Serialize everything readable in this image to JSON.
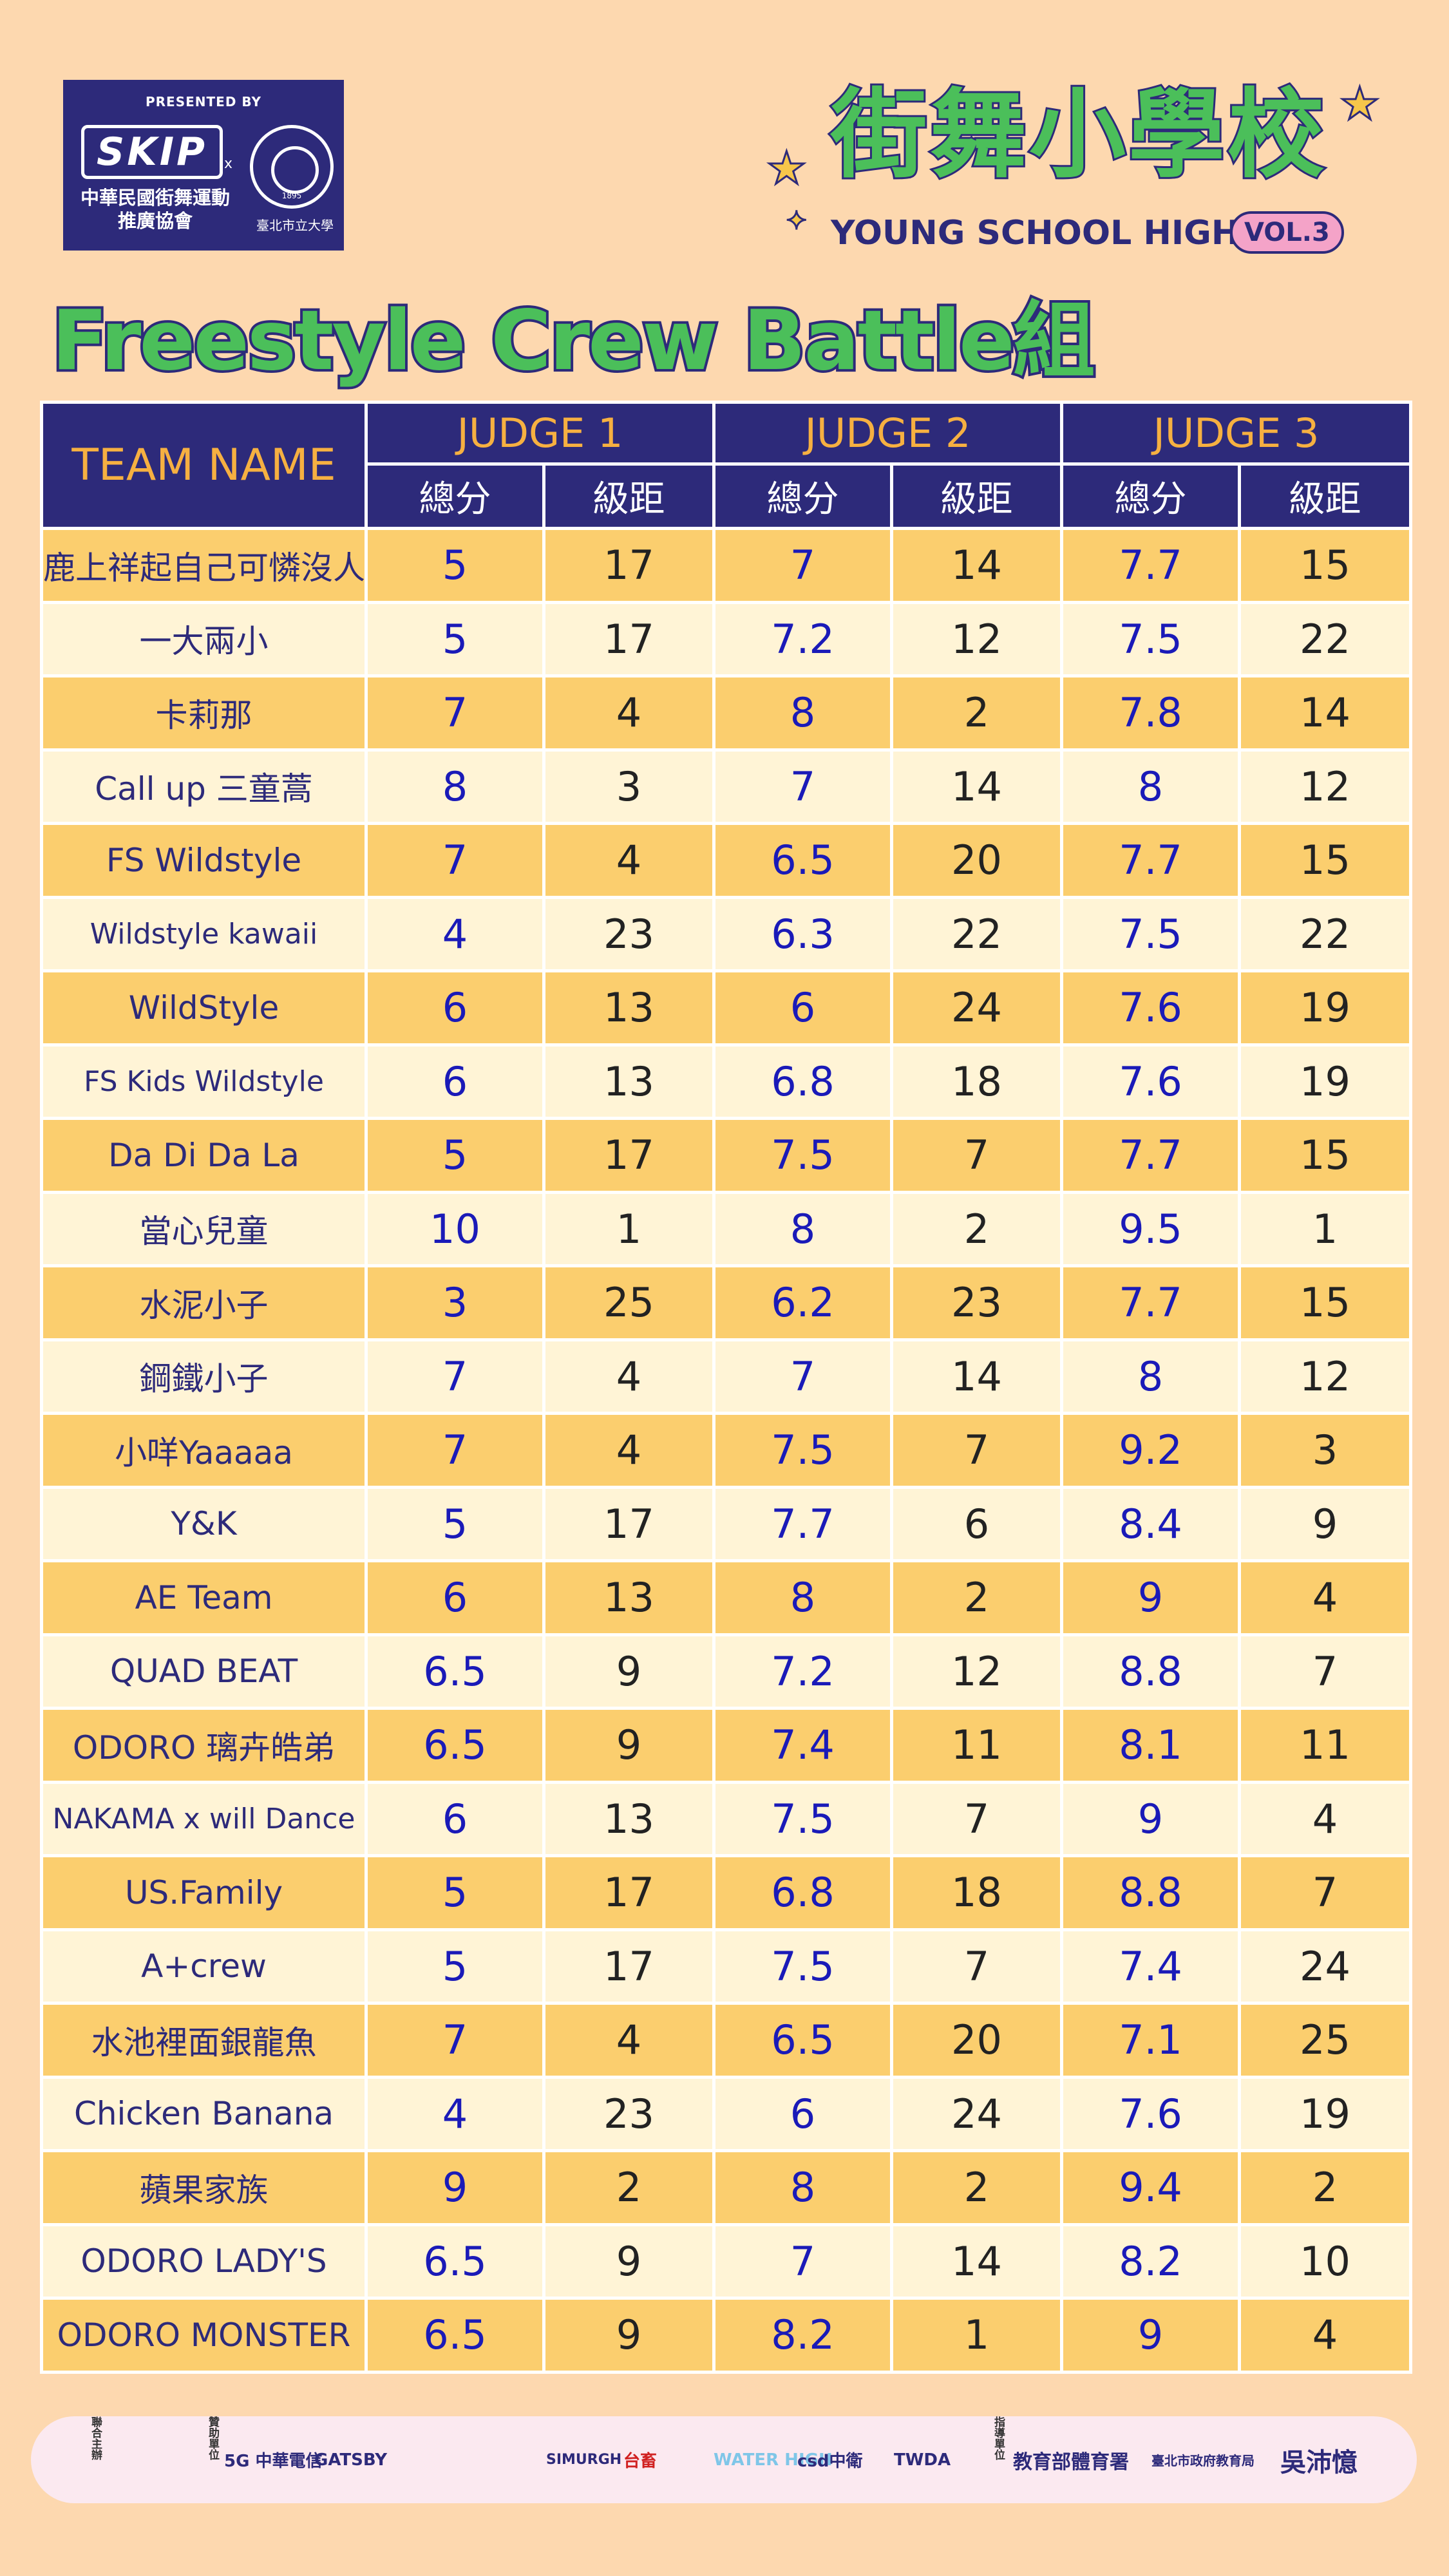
{
  "header": {
    "presented_by": "PRESENTED BY",
    "skip_logo": "SKIP",
    "x_mark": "x",
    "association_name": "中華民國街舞運動推廣協會",
    "university_name": "臺北市立大學",
    "university_year": "1895",
    "event_name_cn": "街舞小學校",
    "event_name_en": "YOUNG SCHOOL HIGH",
    "event_vol": "VOL.3"
  },
  "page_title": "Freestyle Crew Battle組",
  "table": {
    "team_header": "TEAM NAME",
    "judges": [
      "JUDGE 1",
      "JUDGE 2",
      "JUDGE 3"
    ],
    "score_label": "總分",
    "rank_label": "級距",
    "rows": [
      {
        "team": "鹿上祥起自己可憐沒人艾",
        "j1": "5",
        "r1": "17",
        "j2": "7",
        "r2": "14",
        "j3": "7.7",
        "r3": "15"
      },
      {
        "team": "一大兩小",
        "j1": "5",
        "r1": "17",
        "j2": "7.2",
        "r2": "12",
        "j3": "7.5",
        "r3": "22"
      },
      {
        "team": "卡莉那",
        "j1": "7",
        "r1": "4",
        "j2": "8",
        "r2": "2",
        "j3": "7.8",
        "r3": "14"
      },
      {
        "team": "Call up 三童蒿",
        "j1": "8",
        "r1": "3",
        "j2": "7",
        "r2": "14",
        "j3": "8",
        "r3": "12"
      },
      {
        "team": "FS Wildstyle",
        "j1": "7",
        "r1": "4",
        "j2": "6.5",
        "r2": "20",
        "j3": "7.7",
        "r3": "15"
      },
      {
        "team": "Wildstyle kawaii",
        "j1": "4",
        "r1": "23",
        "j2": "6.3",
        "r2": "22",
        "j3": "7.5",
        "r3": "22"
      },
      {
        "team": "WildStyle",
        "j1": "6",
        "r1": "13",
        "j2": "6",
        "r2": "24",
        "j3": "7.6",
        "r3": "19"
      },
      {
        "team": "FS Kids Wildstyle",
        "j1": "6",
        "r1": "13",
        "j2": "6.8",
        "r2": "18",
        "j3": "7.6",
        "r3": "19"
      },
      {
        "team": "Da Di Da La",
        "j1": "5",
        "r1": "17",
        "j2": "7.5",
        "r2": "7",
        "j3": "7.7",
        "r3": "15"
      },
      {
        "team": "當心兒童",
        "j1": "10",
        "r1": "1",
        "j2": "8",
        "r2": "2",
        "j3": "9.5",
        "r3": "1"
      },
      {
        "team": "水泥小子",
        "j1": "3",
        "r1": "25",
        "j2": "6.2",
        "r2": "23",
        "j3": "7.7",
        "r3": "15"
      },
      {
        "team": "鋼鐵小子",
        "j1": "7",
        "r1": "4",
        "j2": "7",
        "r2": "14",
        "j3": "8",
        "r3": "12"
      },
      {
        "team": "小咩Yaaaaa",
        "j1": "7",
        "r1": "4",
        "j2": "7.5",
        "r2": "7",
        "j3": "9.2",
        "r3": "3"
      },
      {
        "team": "Y&K",
        "j1": "5",
        "r1": "17",
        "j2": "7.7",
        "r2": "6",
        "j3": "8.4",
        "r3": "9"
      },
      {
        "team": "AE Team",
        "j1": "6",
        "r1": "13",
        "j2": "8",
        "r2": "2",
        "j3": "9",
        "r3": "4"
      },
      {
        "team": "QUAD BEAT",
        "j1": "6.5",
        "r1": "9",
        "j2": "7.2",
        "r2": "12",
        "j3": "8.8",
        "r3": "7"
      },
      {
        "team": "ODORO 璃卉皓弟",
        "j1": "6.5",
        "r1": "9",
        "j2": "7.4",
        "r2": "11",
        "j3": "8.1",
        "r3": "11"
      },
      {
        "team": "NAKAMA x will Dance",
        "j1": "6",
        "r1": "13",
        "j2": "7.5",
        "r2": "7",
        "j3": "9",
        "r3": "4"
      },
      {
        "team": "US.Family",
        "j1": "5",
        "r1": "17",
        "j2": "6.8",
        "r2": "18",
        "j3": "8.8",
        "r3": "7"
      },
      {
        "team": "A+crew",
        "j1": "5",
        "r1": "17",
        "j2": "7.5",
        "r2": "7",
        "j3": "7.4",
        "r3": "24"
      },
      {
        "team": "水池裡面銀龍魚",
        "j1": "7",
        "r1": "4",
        "j2": "6.5",
        "r2": "20",
        "j3": "7.1",
        "r3": "25"
      },
      {
        "team": "Chicken Banana",
        "j1": "4",
        "r1": "23",
        "j2": "6",
        "r2": "24",
        "j3": "7.6",
        "r3": "19"
      },
      {
        "team": "蘋果家族",
        "j1": "9",
        "r1": "2",
        "j2": "8",
        "r2": "2",
        "j3": "9.4",
        "r3": "2"
      },
      {
        "team": "ODORO LADY'S",
        "j1": "6.5",
        "r1": "9",
        "j2": "7",
        "r2": "14",
        "j3": "8.2",
        "r3": "10"
      },
      {
        "team": "ODORO MONSTER",
        "j1": "6.5",
        "r1": "9",
        "j2": "8.2",
        "r2": "1",
        "j3": "9",
        "r3": "4"
      }
    ]
  },
  "sponsors": {
    "co_host_label": "聯合主辦",
    "sponsor_label": "贊助單位",
    "guide_label": "指導單位",
    "items": [
      "5G 中華電信",
      "GATSBY",
      "SIMURGH",
      "台畜",
      "WATER HIGH",
      "csd中衛",
      "TWDA",
      "教育部體育署",
      "臺北市政府教育局",
      "吳沛憶"
    ]
  },
  "colors": {
    "background": "#FDD8AF",
    "header_bg": "#2D2A7A",
    "header_text": "#F6B041",
    "row_odd": "#FBCE6E",
    "row_even": "#FFF4D6",
    "score_text": "#1A1AB8",
    "title_green": "#4BBF5A"
  }
}
